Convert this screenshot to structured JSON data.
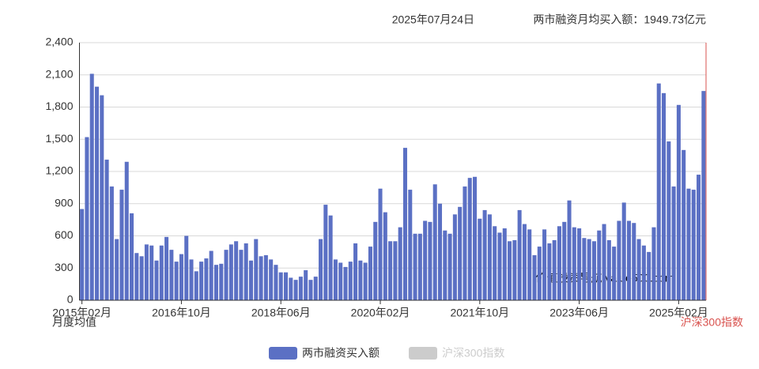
{
  "chart_data": {
    "type": "bar",
    "title": "2025年07月24日",
    "subtitle": "两市融资月均买入额：1949.73亿元",
    "ylabel": "月度均值",
    "y2label": "沪深300指数",
    "y2_color": "#d9534f",
    "annotation": "价值投资导航 value500.com",
    "grid": true,
    "ylim": [
      0,
      2400
    ],
    "yticks": [
      0,
      300,
      600,
      900,
      {
        "value": 1200,
        "label": "1,200"
      },
      {
        "value": 1500,
        "label": "1,500"
      },
      {
        "value": 1800,
        "label": "1,800"
      },
      {
        "value": 2100,
        "label": "2,100"
      },
      {
        "value": 2400,
        "label": "2,400"
      }
    ],
    "categories": [
      "2015年02月",
      null,
      null,
      null,
      null,
      null,
      null,
      null,
      null,
      null,
      null,
      null,
      null,
      null,
      null,
      null,
      null,
      null,
      null,
      null,
      "2016年10月",
      null,
      null,
      null,
      null,
      null,
      null,
      null,
      null,
      null,
      null,
      null,
      null,
      null,
      null,
      null,
      null,
      null,
      null,
      null,
      "2018年06月",
      null,
      null,
      null,
      null,
      null,
      null,
      null,
      null,
      null,
      null,
      null,
      null,
      null,
      null,
      null,
      null,
      null,
      null,
      null,
      "2020年02月",
      null,
      null,
      null,
      null,
      null,
      null,
      null,
      null,
      null,
      null,
      null,
      null,
      null,
      null,
      null,
      null,
      null,
      null,
      null,
      "2021年10月",
      null,
      null,
      null,
      null,
      null,
      null,
      null,
      null,
      null,
      null,
      null,
      null,
      null,
      null,
      null,
      null,
      null,
      null,
      null,
      "2023年06月",
      null,
      null,
      null,
      null,
      null,
      null,
      null,
      null,
      null,
      null,
      null,
      null,
      null,
      null,
      null,
      null,
      null,
      null,
      null,
      "2025年02月",
      null,
      null,
      null,
      null,
      null
    ],
    "series": [
      {
        "name": "两市融资买入额",
        "color": "#5b70c4",
        "values": [
          850,
          1520,
          2110,
          1990,
          1910,
          1310,
          1060,
          570,
          1030,
          1290,
          810,
          440,
          410,
          520,
          510,
          370,
          510,
          590,
          470,
          360,
          430,
          600,
          380,
          270,
          360,
          390,
          460,
          330,
          340,
          470,
          520,
          550,
          470,
          530,
          370,
          570,
          410,
          420,
          380,
          330,
          260,
          260,
          210,
          190,
          220,
          280,
          190,
          220,
          570,
          890,
          790,
          380,
          350,
          310,
          360,
          530,
          370,
          350,
          500,
          730,
          1040,
          820,
          550,
          550,
          680,
          1420,
          1030,
          620,
          620,
          740,
          730,
          1080,
          900,
          650,
          620,
          800,
          870,
          1060,
          1140,
          1150,
          760,
          840,
          800,
          690,
          630,
          670,
          550,
          560,
          840,
          710,
          660,
          420,
          500,
          660,
          530,
          560,
          690,
          730,
          930,
          680,
          670,
          580,
          570,
          550,
          650,
          710,
          560,
          500,
          740,
          910,
          740,
          720,
          570,
          510,
          450,
          680,
          2020,
          1930,
          1480,
          1060,
          1820,
          1400,
          1040,
          1030,
          1170,
          1949.73
        ]
      }
    ],
    "inactive_legend": {
      "name": "沪深300指数",
      "color": "#cccccc"
    }
  }
}
